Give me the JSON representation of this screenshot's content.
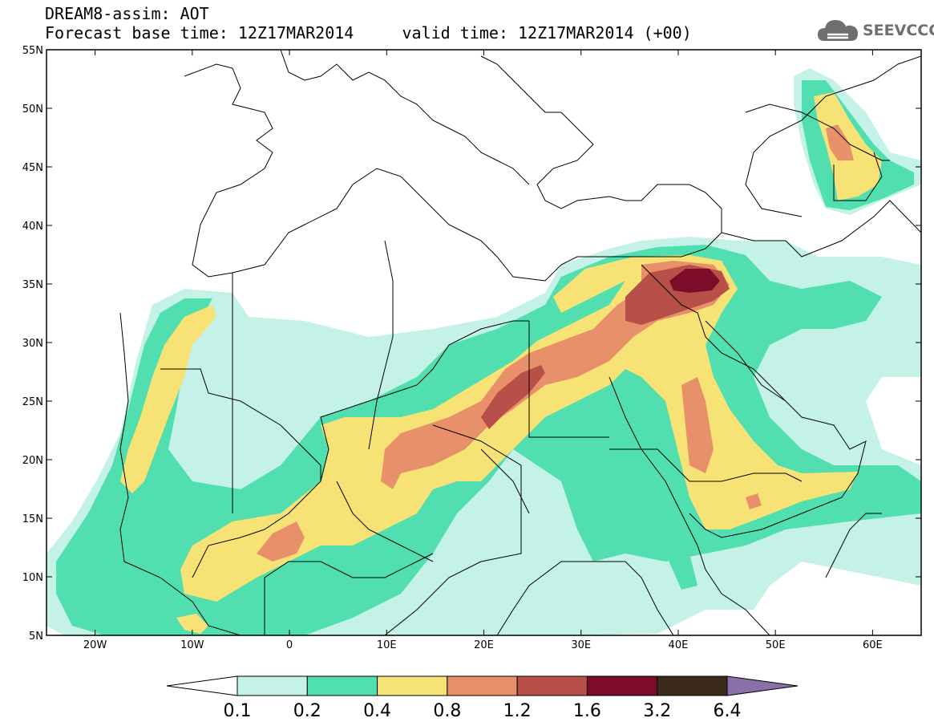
{
  "header": {
    "title_line1": "DREAM8-assim: AOT",
    "title_line2": "Forecast base time: 12Z17MAR2014     valid time: 12Z17MAR2014 (+00)",
    "logo_text": "SEEVCCC",
    "logo_icon": "cloud-icon"
  },
  "map": {
    "lat_labels": [
      "55N",
      "50N",
      "45N",
      "40N",
      "35N",
      "30N",
      "25N",
      "20N",
      "15N",
      "10N",
      "5N"
    ],
    "lon_labels": [
      "20W",
      "10W",
      "0",
      "10E",
      "20E",
      "30E",
      "40E",
      "50E",
      "60E"
    ],
    "lon_range": [
      -25,
      65
    ],
    "lat_range": [
      5,
      55
    ]
  },
  "colorbar": {
    "labels": [
      "0.1",
      "0.2",
      "0.4",
      "0.8",
      "1.2",
      "1.6",
      "3.2",
      "6.4"
    ],
    "colors": [
      "#ffffff",
      "#c4f1e8",
      "#52dfb0",
      "#f7e375",
      "#e8906a",
      "#b8504a",
      "#7d0c2a",
      "#3c2a1a",
      "#8b6fa8"
    ]
  }
}
